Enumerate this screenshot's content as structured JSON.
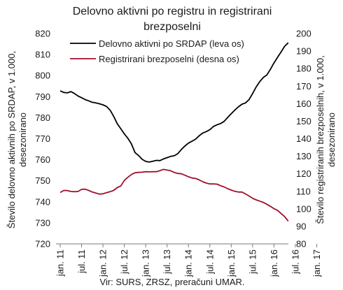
{
  "chart_data": {
    "type": "line",
    "title_line1": "Delovno aktivni po registru in registrirani",
    "title_line2": "brezposelni",
    "ylabel_left_line1": "Število delovno aktivnih po SRDAP, v 1.000,",
    "ylabel_left_line2": "desezonirano",
    "ylabel_right_line1": "Število registriranih brezposelnih, v 1.000,",
    "ylabel_right_line2": "desezonirano",
    "source": "Vir: SURS, ZRSZ, preračuni UMAR.",
    "ylim_left": [
      720,
      820
    ],
    "yticks_left": [
      "720",
      "730",
      "740",
      "750",
      "760",
      "770",
      "780",
      "790",
      "800",
      "810",
      "820"
    ],
    "ylim_right": [
      80,
      200
    ],
    "yticks_right": [
      "80",
      "90",
      "100",
      "110",
      "120",
      "130",
      "140",
      "150",
      "160",
      "170",
      "180",
      "190",
      "200"
    ],
    "x_start": "jan. 11",
    "x_ticks": [
      "jan. 11",
      "jul. 11",
      "jan. 12",
      "jul. 12",
      "jan. 13",
      "jul. 13",
      "jan. 14",
      "jul. 14",
      "jan. 15",
      "jul. 15",
      "jan. 16",
      "jul. 16",
      "jan. 17"
    ],
    "legend_position": "top-left",
    "grid": false,
    "series": [
      {
        "name": "Delovno aktivni po SRDAP (leva os)",
        "axis": "left",
        "color": "#000000",
        "values": [
          792.8,
          792.0,
          791.8,
          792.4,
          791.5,
          790.3,
          789.5,
          788.6,
          788.0,
          787.3,
          787.0,
          786.6,
          786.1,
          785.3,
          783.6,
          780.7,
          777.2,
          774.8,
          772.3,
          770.2,
          767.5,
          763.4,
          762.0,
          760.2,
          759.2,
          758.9,
          759.3,
          759.7,
          759.6,
          760.4,
          761.0,
          761.6,
          761.9,
          762.9,
          764.9,
          766.5,
          767.9,
          768.8,
          769.8,
          771.4,
          772.7,
          773.4,
          774.3,
          775.8,
          776.6,
          777.2,
          778.2,
          780.1,
          781.9,
          783.6,
          785.1,
          786.4,
          787.0,
          788.6,
          791.5,
          794.6,
          797.1,
          799.1,
          800.3,
          803.0,
          806.0,
          808.7,
          811.3,
          814.0,
          815.6
        ]
      },
      {
        "name": "Registrirani brezposelni (desna os)",
        "axis": "right",
        "color": "#a0102e",
        "values": [
          109.3,
          110.5,
          110.4,
          109.9,
          109.8,
          109.9,
          111.1,
          111.2,
          110.5,
          109.6,
          109.0,
          108.4,
          108.6,
          109.2,
          109.8,
          110.5,
          112.1,
          113.0,
          116.2,
          118.0,
          119.6,
          120.6,
          120.8,
          120.9,
          121.2,
          121.1,
          121.2,
          121.2,
          121.8,
          122.5,
          122.1,
          121.7,
          120.8,
          120.2,
          120.0,
          119.2,
          118.3,
          117.6,
          117.3,
          116.5,
          115.5,
          114.7,
          114.2,
          114.2,
          114.1,
          113.2,
          112.5,
          111.5,
          110.7,
          110.0,
          109.6,
          109.6,
          108.5,
          107.3,
          106.0,
          105.1,
          104.4,
          103.7,
          102.6,
          101.4,
          100.1,
          99.1,
          97.3,
          95.5,
          93.0
        ]
      }
    ]
  }
}
